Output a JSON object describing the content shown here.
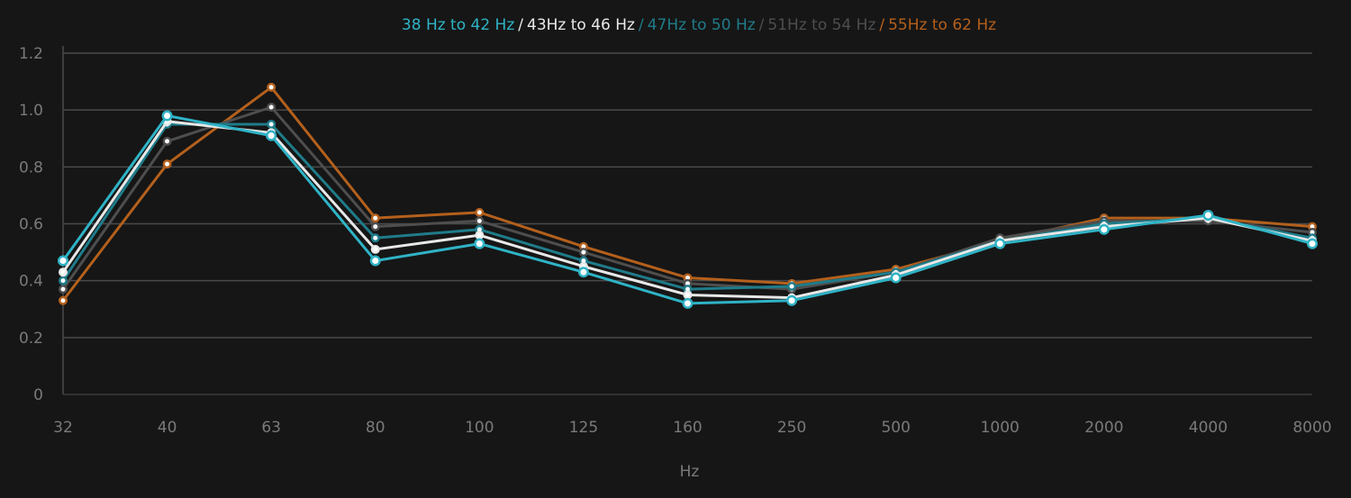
{
  "chart_data": {
    "type": "line",
    "title": "",
    "xlabel": "Hz",
    "ylabel": "",
    "ylim": [
      0,
      1.2
    ],
    "yticks": [
      "0",
      "0.2",
      "0.4",
      "0.6",
      "0.8",
      "1.0",
      "1.2"
    ],
    "ytick_values": [
      0,
      0.2,
      0.4,
      0.6,
      0.8,
      1.0,
      1.2
    ],
    "categories": [
      "32",
      "40",
      "63",
      "80",
      "100",
      "125",
      "160",
      "250",
      "500",
      "1000",
      "2000",
      "4000",
      "8000"
    ],
    "grid": true,
    "legend_placement": "top-center",
    "legend_separator": "/",
    "series": [
      {
        "name": "38 Hz to 42 Hz",
        "color": "#2fb3c6",
        "values": [
          0.47,
          0.98,
          0.91,
          0.47,
          0.53,
          0.43,
          0.32,
          0.33,
          0.41,
          0.53,
          0.58,
          0.63,
          0.53
        ]
      },
      {
        "name": "43Hz to 46 Hz",
        "color": "#e8e8e8",
        "values": [
          0.43,
          0.96,
          0.92,
          0.51,
          0.56,
          0.45,
          0.35,
          0.34,
          0.42,
          0.54,
          0.59,
          0.62,
          0.54
        ]
      },
      {
        "name": "47Hz to 50 Hz",
        "color": "#1f7c8a",
        "values": [
          0.4,
          0.95,
          0.95,
          0.55,
          0.58,
          0.47,
          0.37,
          0.38,
          0.43,
          0.54,
          0.6,
          0.62,
          0.55
        ]
      },
      {
        "name": "51Hz to 54 Hz",
        "color": "#4e4e4e",
        "values": [
          0.37,
          0.89,
          1.01,
          0.59,
          0.61,
          0.5,
          0.39,
          0.37,
          0.43,
          0.55,
          0.61,
          0.61,
          0.57
        ]
      },
      {
        "name": "55Hz to 62 Hz",
        "color": "#b4601c",
        "values": [
          0.33,
          0.81,
          1.08,
          0.62,
          0.64,
          0.52,
          0.41,
          0.39,
          0.44,
          0.54,
          0.62,
          0.62,
          0.59
        ]
      }
    ]
  }
}
